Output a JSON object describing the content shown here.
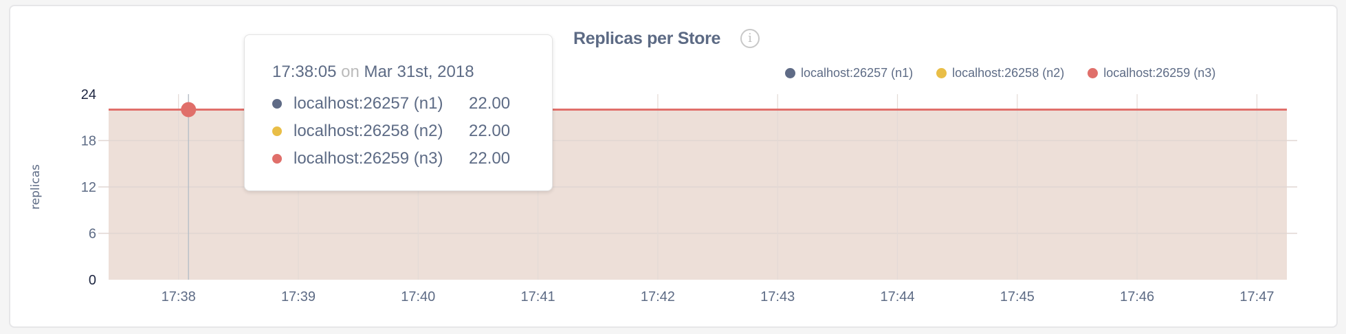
{
  "chart_data": {
    "type": "area",
    "title": "Replicas per Store",
    "ylabel": "replicas",
    "xlabel": "",
    "ylim": [
      0,
      24
    ],
    "yticks": [
      "0",
      "6",
      "12",
      "18",
      "24"
    ],
    "xlim": [
      "17:37:25",
      "17:47:15"
    ],
    "xticks": [
      "17:38",
      "17:39",
      "17:40",
      "17:41",
      "17:42",
      "17:43",
      "17:44",
      "17:45",
      "17:46",
      "17:47"
    ],
    "grid": true,
    "legend_position": "top-right",
    "x": [
      "17:37:25",
      "17:47:15"
    ],
    "series": [
      {
        "name": "localhost:26257 (n1)",
        "color": "#5f6b86",
        "values": [
          22,
          22
        ]
      },
      {
        "name": "localhost:26258 (n2)",
        "color": "#e9be47",
        "values": [
          22,
          22
        ]
      },
      {
        "name": "localhost:26259 (n3)",
        "color": "#e06f6a",
        "values": [
          22,
          22
        ]
      }
    ],
    "fill_color": "#eddfd8"
  },
  "info_icon": "info-circle-icon",
  "tooltip": {
    "time": "17:38:05",
    "on": "on",
    "date": "Mar 31st, 2018",
    "rows": [
      {
        "label": "localhost:26257 (n1)",
        "value": "22.00",
        "color": "#5f6b86"
      },
      {
        "label": "localhost:26258 (n2)",
        "value": "22.00",
        "color": "#e9be47"
      },
      {
        "label": "localhost:26259 (n3)",
        "value": "22.00",
        "color": "#e06f6a"
      }
    ]
  }
}
